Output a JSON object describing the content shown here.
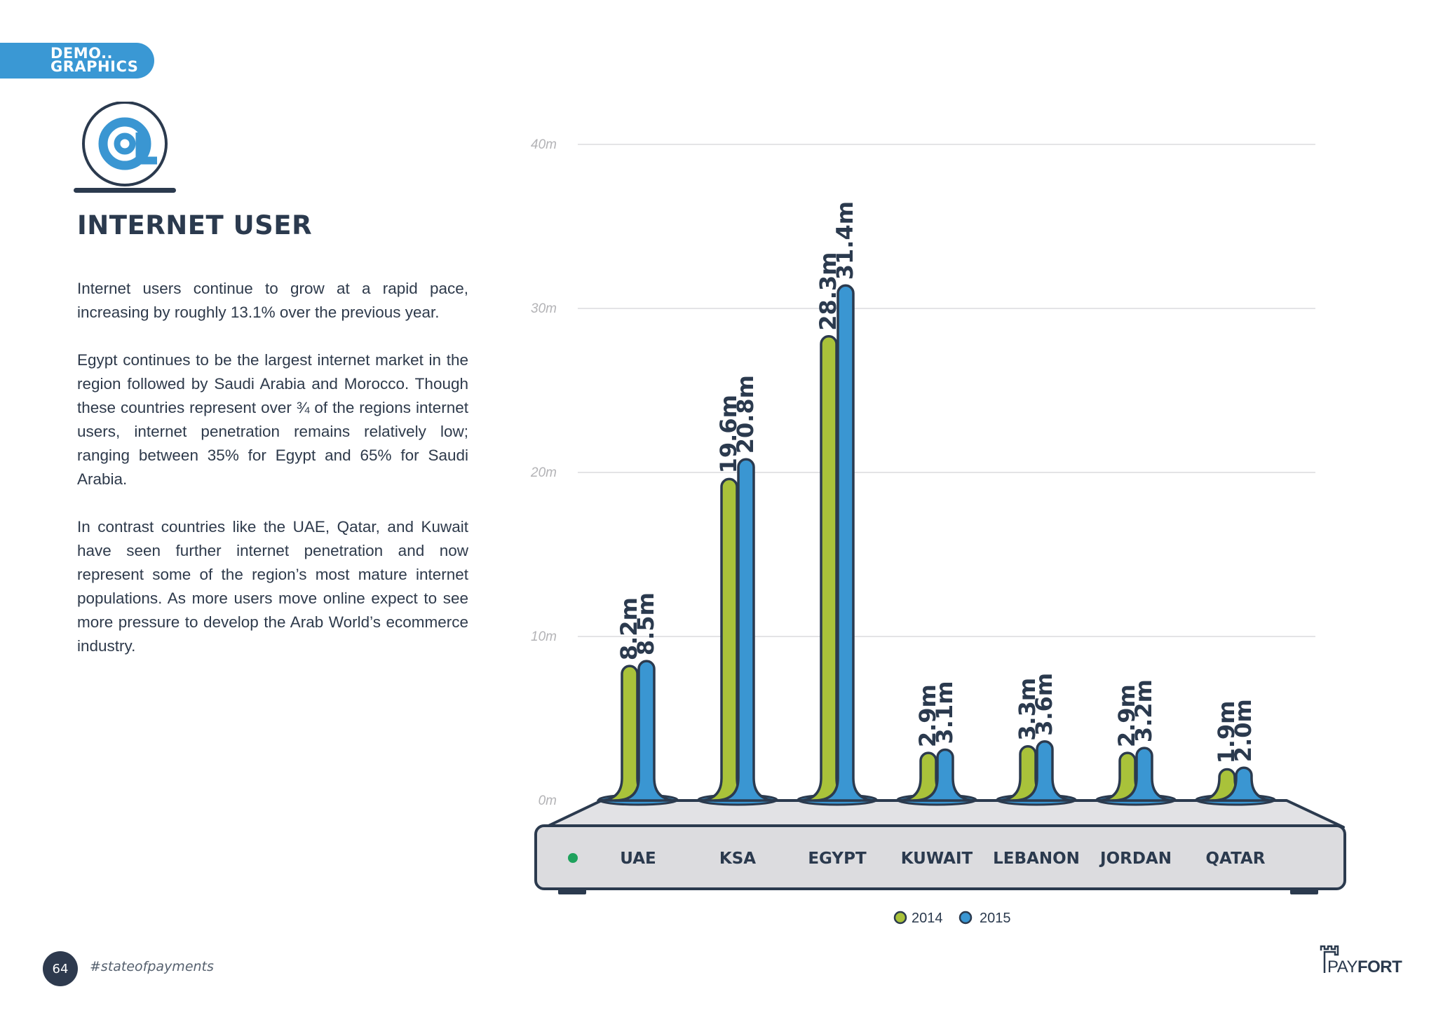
{
  "section_tag": {
    "line1": "DEMO..",
    "line2": "GRAPHICS"
  },
  "heading": "INTERNET USER",
  "paragraphs": [
    "Internet users continue to grow at a rapid pace, increasing by roughly 13.1% over the previous year.",
    "Egypt continues to be the largest internet market in the region followed by Saudi Arabia and Morocco. Though these countries represent over ¾ of the regions internet users, internet penetration remains relatively low; ranging between 35% for Egypt and 65% for Saudi Arabia.",
    "In contrast countries like the UAE, Qatar, and Kuwait have seen further internet penetration and now represent some of the region’s most mature internet populations. As more users move online expect to see more pressure to develop the Arab World’s ecommerce industry."
  ],
  "footer": {
    "page_number": "64",
    "hashtag": "#stateofpayments",
    "brand_part1": "PAY",
    "brand_part2": "FORT"
  },
  "chart_data": {
    "type": "bar",
    "title": "INTERNET USER",
    "ylim": [
      0,
      40
    ],
    "y_ticks": [
      0,
      10,
      20,
      30,
      40
    ],
    "y_tick_labels": [
      "0m",
      "10m",
      "20m",
      "30m",
      "40m"
    ],
    "grid": true,
    "legend_position": "bottom-center",
    "categories": [
      "UAE",
      "KSA",
      "EGYPT",
      "KUWAIT",
      "LEBANON",
      "JORDAN",
      "QATAR"
    ],
    "series": [
      {
        "name": "2014",
        "color": "#a9c23a",
        "values": [
          8.2,
          19.6,
          28.3,
          2.9,
          3.3,
          2.9,
          1.9
        ],
        "labels": [
          "8.2m",
          "19.6m",
          "28.3m",
          "2.9m",
          "3.3m",
          "2.9m",
          "1.9m"
        ]
      },
      {
        "name": "2015",
        "color": "#3a96d2",
        "values": [
          8.5,
          20.8,
          31.4,
          3.1,
          3.6,
          3.2,
          2.0
        ],
        "labels": [
          "8.5m",
          "20.8m",
          "31.4m",
          "3.1m",
          "3.6m",
          "3.2m",
          "2.0m"
        ]
      }
    ]
  }
}
